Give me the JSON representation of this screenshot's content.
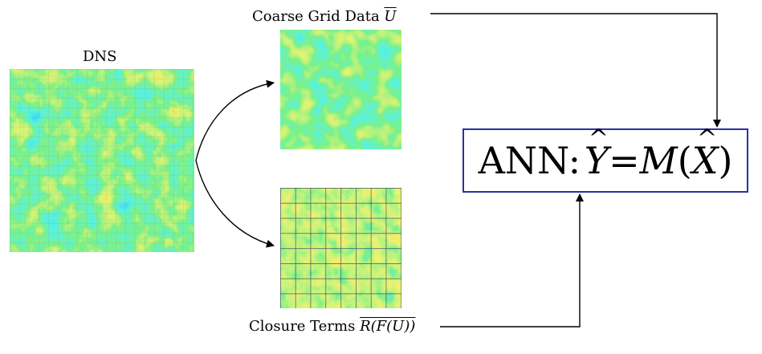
{
  "labels": {
    "dns": "DNS",
    "coarse_prefix": "Coarse Grid Data ",
    "coarse_symbol": "U",
    "closure_prefix": "Closure Terms ",
    "closure_symbol": "R(F(U))"
  },
  "ann": {
    "prefix": "ANN: ",
    "y": "Y",
    "eq": " = ",
    "m": "M",
    "open": "(",
    "x": "X",
    "close": ")"
  },
  "colors": {
    "colormap": [
      "#1010c8",
      "#0aa0e6",
      "#18e0c8",
      "#30e040",
      "#c8e628",
      "#f0a010",
      "#e01818"
    ],
    "ann_border": "#2b2fa8"
  }
}
